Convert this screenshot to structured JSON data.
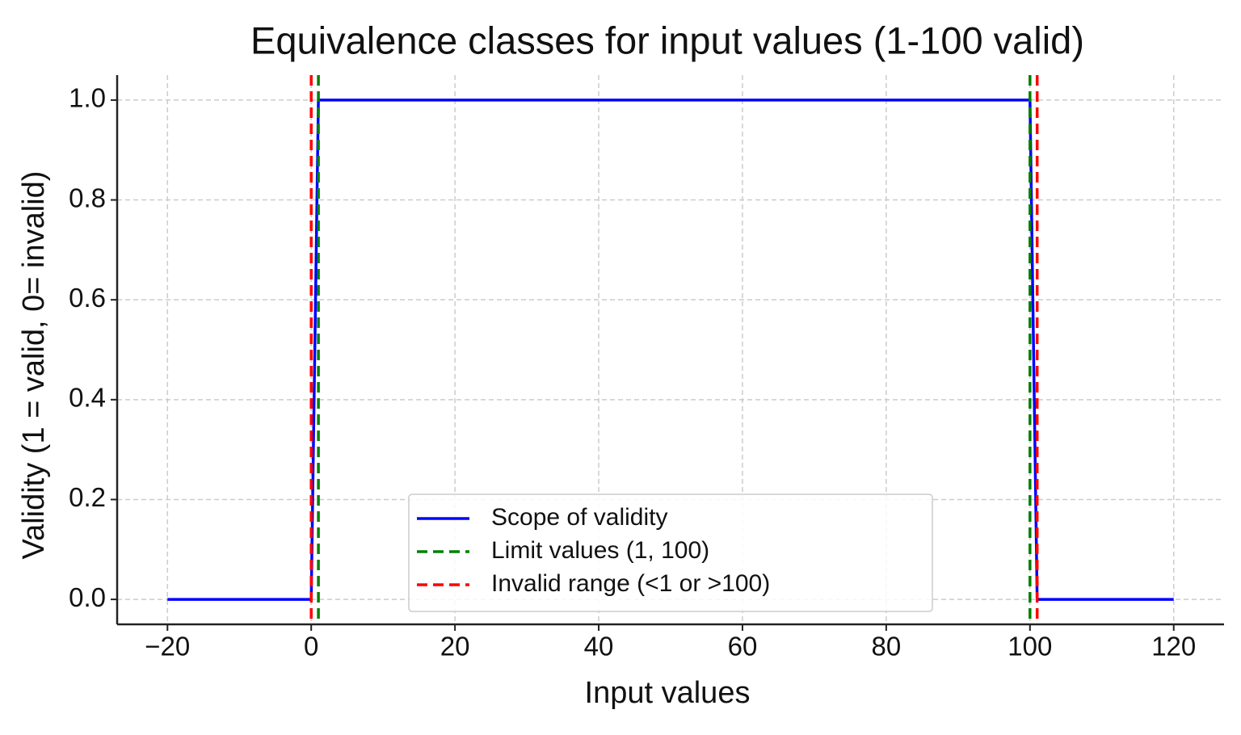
{
  "chart_data": {
    "type": "line",
    "title": "Equivalence classes for input values (1-100 valid)",
    "x_label": "Input values",
    "y_label": "Validity (1 = valid, 0= invalid)",
    "xlim": [
      -27,
      127
    ],
    "ylim": [
      -0.05,
      1.05
    ],
    "xticks": [
      {
        "value": -20,
        "label": "−20"
      },
      0,
      20,
      40,
      60,
      80,
      100,
      120
    ],
    "yticks": [
      {
        "value": 0,
        "label": "0.0"
      },
      0.2,
      0.4,
      0.6,
      0.8,
      {
        "value": 1,
        "label": "1.0"
      }
    ],
    "grid": true,
    "legend": "lower center",
    "series": [
      {
        "name": "Scope of validity",
        "color": "#0000ff",
        "x": [
          -20,
          0,
          1,
          100,
          101,
          120
        ],
        "values": [
          0,
          0,
          1,
          1,
          0,
          0
        ]
      },
      {
        "name": "Limit values (1, 100)",
        "color": "#008000",
        "mark": "vline",
        "style": "dashed",
        "x": [
          1,
          100
        ]
      },
      {
        "name": "Invalid range (<1 or >100)",
        "color": "#ff0000",
        "mark": "vline",
        "style": "dashed",
        "x": [
          0,
          101
        ]
      }
    ]
  }
}
